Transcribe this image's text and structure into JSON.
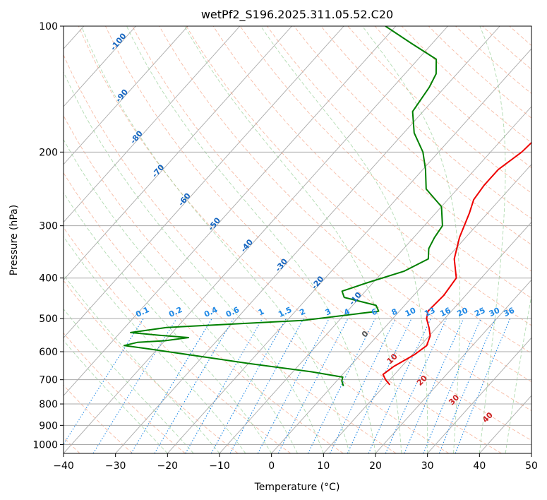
{
  "chart_data": {
    "type": "line",
    "title": "wetPf2_S196.2025.311.05.52.C20",
    "xlabel": "Temperature (°C)",
    "ylabel": "Pressure (hPa)",
    "xlim": [
      -40,
      50
    ],
    "ylim": [
      1050,
      100
    ],
    "y_scale": "log",
    "x_ticks": [
      -40,
      -30,
      -20,
      -10,
      0,
      10,
      20,
      30,
      40,
      50
    ],
    "y_ticks": [
      100,
      200,
      300,
      400,
      500,
      600,
      700,
      800,
      900,
      1000
    ],
    "skew": "skew-T log-P",
    "grid": true,
    "series": [
      {
        "color": "#ee0000",
        "points": [
          [
            10.9,
            720
          ],
          [
            9.2,
            700
          ],
          [
            7.8,
            680
          ],
          [
            8.5,
            650
          ],
          [
            10.4,
            610
          ],
          [
            11.2,
            580
          ],
          [
            10.2,
            550
          ],
          [
            8.5,
            525
          ],
          [
            6.5,
            500
          ],
          [
            5.5,
            480
          ],
          [
            5.8,
            440
          ],
          [
            5.2,
            400
          ],
          [
            1.5,
            360
          ],
          [
            -1.2,
            320
          ],
          [
            -3.5,
            280
          ],
          [
            -5.0,
            260
          ],
          [
            -5.5,
            240
          ],
          [
            -5.5,
            220
          ],
          [
            -4.0,
            200
          ],
          [
            -3.5,
            180
          ],
          [
            -3.5,
            165
          ],
          [
            -6.5,
            145
          ],
          [
            -10.0,
            130
          ],
          [
            -12.5,
            120
          ],
          [
            -16.0,
            110
          ],
          [
            -18.0,
            100
          ]
        ]
      },
      {
        "color": "#008000",
        "points": [
          [
            2.2,
            725
          ],
          [
            1.0,
            705
          ],
          [
            0.5,
            690
          ],
          [
            -6.5,
            670
          ],
          [
            -20.0,
            640
          ],
          [
            -42.0,
            590
          ],
          [
            -47.0,
            580
          ],
          [
            -45.0,
            570
          ],
          [
            -40.0,
            565
          ],
          [
            -36.0,
            555
          ],
          [
            -42.0,
            548
          ],
          [
            -48.0,
            540
          ],
          [
            -42.0,
            525
          ],
          [
            -17.0,
            505
          ],
          [
            -4.0,
            480
          ],
          [
            -5.5,
            465
          ],
          [
            -13.0,
            445
          ],
          [
            -14.5,
            430
          ],
          [
            -11.0,
            410
          ],
          [
            -6.0,
            385
          ],
          [
            -3.5,
            360
          ],
          [
            -5.2,
            340
          ],
          [
            -6.0,
            320
          ],
          [
            -6.5,
            300
          ],
          [
            -10.0,
            270
          ],
          [
            -16.0,
            245
          ],
          [
            -19.5,
            220
          ],
          [
            -23.0,
            200
          ],
          [
            -28.0,
            180
          ],
          [
            -32.0,
            160
          ],
          [
            -33.0,
            140
          ],
          [
            -34.0,
            130
          ],
          [
            -36.5,
            120
          ],
          [
            -44.0,
            110
          ],
          [
            -52.0,
            100
          ]
        ]
      }
    ],
    "dry_adiabat_labels": [
      "-100",
      "-90",
      "-80",
      "-70",
      "-60",
      "-50",
      "-40",
      "-30",
      "-20",
      "-10"
    ],
    "mixing_ratio_labels": [
      "0.1",
      "0.2",
      "0.4",
      "0.6",
      "1",
      "1.5",
      "2",
      "3",
      "4",
      "6",
      "8",
      "10",
      "13",
      "16",
      "20",
      "25",
      "30",
      "36"
    ],
    "moist_adiabat_labels": [
      "0",
      "10",
      "20",
      "30",
      "40"
    ]
  }
}
